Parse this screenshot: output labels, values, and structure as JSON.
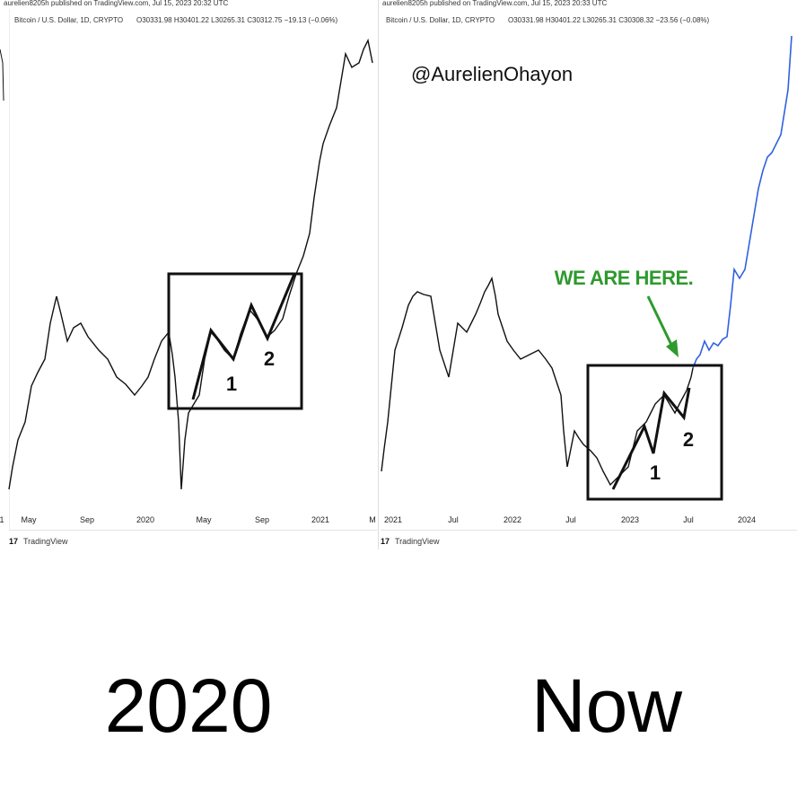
{
  "panels": [
    {
      "published": "aurelien8205h published on TradingView.com, Jul 15, 2023 20:32 UTC",
      "symbol": "Bitcoin / U.S. Dollar, 1D, CRYPTO",
      "ohlc": "O30331.98 H30401.22 L30265.31 C30312.75 −19.13 (−0.06%)",
      "x_labels": [
        "1",
        "May",
        "Sep",
        "2020",
        "May",
        "Sep",
        "2021",
        "M"
      ],
      "wave_labels": [
        "1",
        "2"
      ],
      "brand": "TradingView"
    },
    {
      "published": "aurelien8205h published on TradingView.com, Jul 15, 2023 20:33 UTC",
      "symbol": "Bitcoin / U.S. Dollar, 1D, CRYPTO",
      "ohlc": "O30331.98 H30401.22 L30265.31 C30308.32 −23.56 (−0.08%)",
      "x_labels": [
        "2021",
        "Jul",
        "2022",
        "Jul",
        "2023",
        "Jul",
        "2024"
      ],
      "wave_labels": [
        "1",
        "2"
      ],
      "brand": "TradingView",
      "handle": "@AurelienOhayon",
      "callout": "WE ARE HERE."
    }
  ],
  "captions": [
    "2020",
    "Now"
  ]
}
